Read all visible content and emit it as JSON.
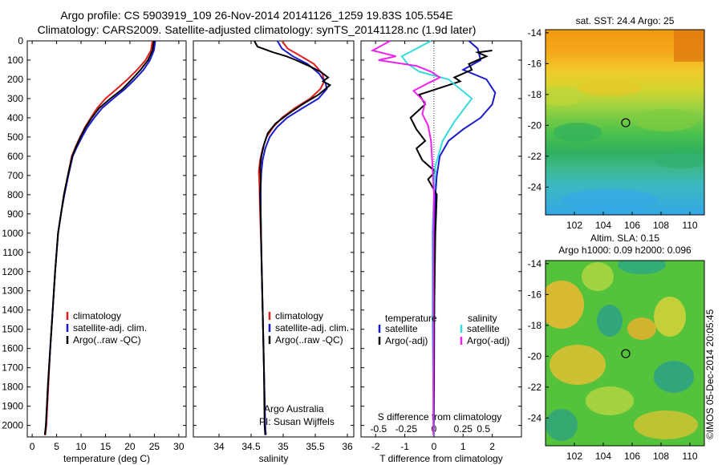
{
  "header": {
    "line1": "Argo profile: CS 5903919_109 26-Nov-2014 20141126_1259 19.83S 105.554E",
    "line2": "Climatology: CARS2009. Satellite-adjusted climatology: synTS_20141128.nc (1.9d later)"
  },
  "colors": {
    "climatology": "#e0201c",
    "satellite": "#1a1acc",
    "argo": "#000000",
    "salinity_sat": "#33dddd",
    "salinity_argo": "#ee22ee"
  },
  "chart_data": [
    {
      "type": "line",
      "id": "temperature",
      "xlabel": "temperature (deg C)",
      "xlim": [
        -1,
        31.5
      ],
      "xticks": [
        0,
        5,
        10,
        15,
        20,
        25,
        30
      ],
      "ylim": [
        2060,
        0
      ],
      "yticks": [
        0,
        100,
        200,
        300,
        400,
        500,
        600,
        700,
        800,
        900,
        1000,
        1100,
        1200,
        1300,
        1400,
        1500,
        1600,
        1700,
        1800,
        1900,
        2000
      ],
      "legend": [
        "climatology",
        "satellite-adj. clim.",
        "Argo(..raw -QC)"
      ],
      "series": [
        {
          "name": "climatology",
          "color": "#e0201c",
          "points": [
            [
              24.6,
              0
            ],
            [
              24.3,
              50
            ],
            [
              23.2,
              100
            ],
            [
              21.5,
              150
            ],
            [
              19.5,
              200
            ],
            [
              17.3,
              250
            ],
            [
              15.0,
              300
            ],
            [
              13.3,
              350
            ],
            [
              12.0,
              400
            ],
            [
              10.8,
              450
            ],
            [
              9.8,
              500
            ],
            [
              8.9,
              550
            ],
            [
              8.1,
              600
            ],
            [
              7.3,
              700
            ],
            [
              6.5,
              800
            ],
            [
              5.9,
              900
            ],
            [
              5.3,
              1000
            ],
            [
              4.7,
              1200
            ],
            [
              4.2,
              1400
            ],
            [
              3.7,
              1600
            ],
            [
              3.3,
              1800
            ],
            [
              2.9,
              2000
            ],
            [
              2.7,
              2050
            ]
          ]
        },
        {
          "name": "satellite-adj. clim.",
          "color": "#1a1acc",
          "points": [
            [
              25.2,
              0
            ],
            [
              24.9,
              50
            ],
            [
              24.1,
              100
            ],
            [
              22.8,
              150
            ],
            [
              21.0,
              200
            ],
            [
              19.0,
              250
            ],
            [
              16.6,
              300
            ],
            [
              14.3,
              350
            ],
            [
              12.7,
              400
            ],
            [
              11.3,
              450
            ],
            [
              10.2,
              500
            ],
            [
              9.2,
              550
            ],
            [
              8.3,
              600
            ],
            [
              7.4,
              700
            ],
            [
              6.6,
              800
            ],
            [
              5.9,
              900
            ],
            [
              5.3,
              1000
            ],
            [
              4.7,
              1200
            ],
            [
              4.2,
              1400
            ],
            [
              3.7,
              1600
            ],
            [
              3.2,
              1800
            ],
            [
              2.8,
              2000
            ],
            [
              2.6,
              2050
            ]
          ]
        },
        {
          "name": "Argo(..raw -QC)",
          "color": "#000000",
          "points": [
            [
              24.9,
              0
            ],
            [
              24.6,
              50
            ],
            [
              23.7,
              100
            ],
            [
              22.2,
              150
            ],
            [
              20.4,
              200
            ],
            [
              18.5,
              250
            ],
            [
              16.0,
              300
            ],
            [
              13.7,
              350
            ],
            [
              12.2,
              400
            ],
            [
              10.9,
              450
            ],
            [
              9.9,
              500
            ],
            [
              9.0,
              550
            ],
            [
              8.2,
              600
            ],
            [
              7.3,
              700
            ],
            [
              6.5,
              800
            ],
            [
              5.9,
              900
            ],
            [
              5.3,
              1000
            ],
            [
              4.7,
              1200
            ],
            [
              4.2,
              1400
            ],
            [
              3.7,
              1600
            ],
            [
              3.2,
              1800
            ],
            [
              2.8,
              2000
            ],
            [
              2.6,
              2050
            ]
          ]
        }
      ]
    },
    {
      "type": "line",
      "id": "salinity",
      "xlabel": "salinity",
      "xlim": [
        33.6,
        36.1
      ],
      "xticks": [
        34,
        34.5,
        35,
        35.5,
        36
      ],
      "ylim": [
        2060,
        0
      ],
      "legend": [
        "climatology",
        "satellite-adj. clim.",
        "Argo(..raw -QC)"
      ],
      "annotation": [
        "Argo Australia",
        "PI: Susan Wijffels"
      ],
      "series": [
        {
          "name": "climatology",
          "color": "#e0201c",
          "points": [
            [
              34.98,
              0
            ],
            [
              35.07,
              40
            ],
            [
              35.28,
              80
            ],
            [
              35.48,
              120
            ],
            [
              35.61,
              170
            ],
            [
              35.64,
              210
            ],
            [
              35.58,
              250
            ],
            [
              35.42,
              300
            ],
            [
              35.18,
              350
            ],
            [
              34.98,
              400
            ],
            [
              34.84,
              450
            ],
            [
              34.74,
              500
            ],
            [
              34.68,
              560
            ],
            [
              34.64,
              620
            ],
            [
              34.62,
              680
            ],
            [
              34.63,
              750
            ],
            [
              34.64,
              900
            ],
            [
              34.66,
              1100
            ],
            [
              34.68,
              1400
            ],
            [
              34.7,
              1700
            ],
            [
              34.72,
              2000
            ],
            [
              34.73,
              2050
            ]
          ]
        },
        {
          "name": "satellite-adj. clim.",
          "color": "#1a1acc",
          "points": [
            [
              34.91,
              0
            ],
            [
              34.98,
              40
            ],
            [
              35.15,
              80
            ],
            [
              35.38,
              120
            ],
            [
              35.56,
              170
            ],
            [
              35.66,
              220
            ],
            [
              35.68,
              250
            ],
            [
              35.55,
              300
            ],
            [
              35.3,
              350
            ],
            [
              35.06,
              400
            ],
            [
              34.9,
              450
            ],
            [
              34.79,
              500
            ],
            [
              34.72,
              560
            ],
            [
              34.68,
              620
            ],
            [
              34.66,
              680
            ],
            [
              34.65,
              750
            ],
            [
              34.65,
              900
            ],
            [
              34.66,
              1100
            ],
            [
              34.68,
              1400
            ],
            [
              34.7,
              1700
            ],
            [
              34.72,
              2000
            ],
            [
              34.73,
              2050
            ]
          ]
        },
        {
          "name": "Argo(..raw -QC)",
          "color": "#000000",
          "points": [
            [
              34.55,
              0
            ],
            [
              34.6,
              30
            ],
            [
              34.85,
              60
            ],
            [
              35.05,
              80
            ],
            [
              35.2,
              100
            ],
            [
              35.4,
              130
            ],
            [
              35.58,
              160
            ],
            [
              35.7,
              190
            ],
            [
              35.62,
              210
            ],
            [
              35.73,
              230
            ],
            [
              35.55,
              280
            ],
            [
              35.3,
              330
            ],
            [
              35.08,
              380
            ],
            [
              34.88,
              430
            ],
            [
              34.76,
              480
            ],
            [
              34.7,
              540
            ],
            [
              34.66,
              600
            ],
            [
              34.64,
              660
            ],
            [
              34.65,
              720
            ],
            [
              34.64,
              800
            ],
            [
              34.65,
              900
            ],
            [
              34.66,
              1100
            ],
            [
              34.68,
              1400
            ],
            [
              34.7,
              1700
            ],
            [
              34.71,
              2000
            ],
            [
              34.72,
              2050
            ]
          ]
        }
      ]
    },
    {
      "type": "line",
      "id": "difference",
      "xlabel": "T difference from climatology",
      "xlabel_top": "S difference from climatology",
      "xlim": [
        -2.5,
        3.0
      ],
      "xticks": [
        -2,
        -1,
        0,
        1,
        2
      ],
      "xticks_s": [
        "-0.5",
        "-0.25",
        "0",
        "0.25",
        "0.5"
      ],
      "ylim": [
        2060,
        0
      ],
      "legend_left": {
        "title": "temperature",
        "items": [
          "satellite",
          "Argo(-adj)"
        ]
      },
      "legend_right": {
        "title": "salinity",
        "items": [
          "satellite",
          "Argo(-adj)"
        ]
      },
      "series": [
        {
          "name": "T satellite",
          "color": "#1a1acc",
          "points": [
            [
              1.2,
              0
            ],
            [
              1.5,
              40
            ],
            [
              1.6,
              100
            ],
            [
              1.0,
              150
            ],
            [
              1.8,
              200
            ],
            [
              2.1,
              270
            ],
            [
              2.0,
              330
            ],
            [
              1.6,
              400
            ],
            [
              1.0,
              460
            ],
            [
              0.5,
              520
            ],
            [
              0.2,
              600
            ],
            [
              0.1,
              700
            ],
            [
              0.05,
              800
            ],
            [
              0.02,
              1000
            ],
            [
              0.01,
              1500
            ],
            [
              0.0,
              2050
            ]
          ]
        },
        {
          "name": "T Argo(-adj)",
          "color": "#000000",
          "points": [
            [
              2.0,
              50
            ],
            [
              1.5,
              60
            ],
            [
              1.8,
              80
            ],
            [
              1.2,
              120
            ],
            [
              1.3,
              150
            ],
            [
              0.7,
              190
            ],
            [
              0.9,
              210
            ],
            [
              0.3,
              240
            ],
            [
              -0.5,
              280
            ],
            [
              -0.3,
              330
            ],
            [
              -0.8,
              400
            ],
            [
              -0.6,
              460
            ],
            [
              -0.3,
              520
            ],
            [
              -0.6,
              560
            ],
            [
              -0.4,
              620
            ],
            [
              0.05,
              680
            ],
            [
              -0.2,
              720
            ],
            [
              0.1,
              800
            ],
            [
              0.05,
              1000
            ],
            [
              0.0,
              1500
            ],
            [
              0.0,
              2050
            ]
          ]
        },
        {
          "name": "S satellite",
          "color": "#33dddd",
          "points": [
            [
              -0.1,
              0
            ],
            [
              -1.1,
              80
            ],
            [
              -0.9,
              120
            ],
            [
              -0.5,
              160
            ],
            [
              0.5,
              200
            ],
            [
              0.9,
              250
            ],
            [
              1.3,
              300
            ],
            [
              1.0,
              360
            ],
            [
              0.7,
              420
            ],
            [
              0.5,
              470
            ],
            [
              0.3,
              520
            ],
            [
              0.05,
              650
            ],
            [
              0.0,
              800
            ],
            [
              -0.05,
              1000
            ],
            [
              -0.05,
              1500
            ],
            [
              0.0,
              2050
            ]
          ]
        },
        {
          "name": "S Argo(-adj)",
          "color": "#ee22ee",
          "points": [
            [
              -1.5,
              0
            ],
            [
              -2.1,
              50
            ],
            [
              -1.3,
              80
            ],
            [
              -1.9,
              100
            ],
            [
              -0.6,
              130
            ],
            [
              -0.1,
              160
            ],
            [
              0.2,
              190
            ],
            [
              -0.2,
              220
            ],
            [
              -0.7,
              260
            ],
            [
              -0.3,
              320
            ],
            [
              -0.4,
              380
            ],
            [
              -0.2,
              440
            ],
            [
              -0.1,
              520
            ],
            [
              -0.05,
              650
            ],
            [
              0.0,
              800
            ],
            [
              -0.02,
              1000
            ],
            [
              -0.02,
              1500
            ],
            [
              -0.02,
              2050
            ]
          ]
        }
      ]
    },
    {
      "type": "heatmap",
      "id": "sst-map",
      "title": "sat. SST: 24.4 Argo: 25",
      "xlim": [
        100,
        111
      ],
      "ylim": [
        -25.8,
        -13.8
      ],
      "xticks": [
        102,
        104,
        106,
        108,
        110
      ],
      "yticks": [
        -14,
        -16,
        -18,
        -20,
        -22,
        -24
      ],
      "marker": [
        105.554,
        -19.83
      ]
    },
    {
      "type": "heatmap",
      "id": "sla-map",
      "title": "Altim. SLA: 0.15",
      "subtitle": "Argo h1000: 0.09 h2000: 0.096",
      "xlim": [
        100,
        111
      ],
      "ylim": [
        -25.8,
        -13.8
      ],
      "xticks": [
        102,
        104,
        106,
        108,
        110
      ],
      "yticks": [
        -14,
        -16,
        -18,
        -20,
        -22,
        -24
      ],
      "marker": [
        105.554,
        -19.83
      ]
    }
  ],
  "credit": "©IMOS 05-Dec-2014 20:05:45"
}
